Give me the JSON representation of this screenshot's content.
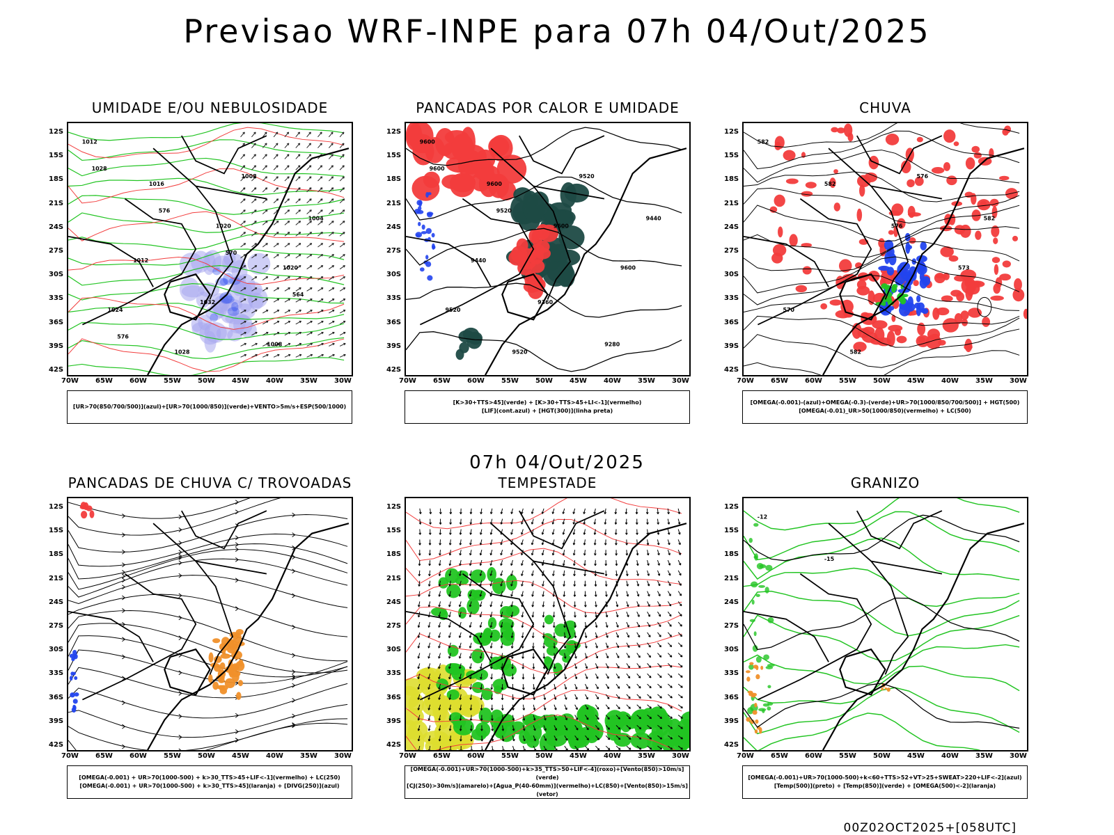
{
  "title": "Previsao WRF-INPE  para 07h 04/Out/2025",
  "mid_date": "07h 04/Out/2025",
  "footer": "00Z02OCT2025+[058UTC]",
  "lat_ticks": [
    "12S",
    "15S",
    "18S",
    "21S",
    "24S",
    "27S",
    "30S",
    "33S",
    "36S",
    "39S",
    "42S"
  ],
  "lon_ticks": [
    "70W",
    "65W",
    "60W",
    "55W",
    "50W",
    "45W",
    "40W",
    "35W",
    "30W"
  ],
  "colors": {
    "red": "#f23c3c",
    "green": "#22c422",
    "blue": "#2244ee",
    "lavender": "#a8a8ee",
    "darkgreen": "#1e4a44",
    "orange": "#f0902a",
    "yellow": "#dede30"
  },
  "panels": [
    {
      "title": "UMIDADE E/OU NEBULOSIDADE",
      "legend": [
        "[UR>70(850/700/500)](azul)+[UR>70(1000/850)](verde)+VENTO>5m/s+ESP(500/1000)"
      ]
    },
    {
      "title": "PANCADAS POR CALOR E UMIDADE",
      "legend": [
        "[K>30+TTS>45](verde) + [K>30+TTS>45+LI<-1](vermelho)",
        "[LIF](cont.azul) + [HGT(300)](linha preta)"
      ]
    },
    {
      "title": "CHUVA",
      "legend": [
        "[OMEGA(-0.001)-(azul)+OMEGA(-0.3)-(verde)+UR>70(1000/850/700/500)] + HGT(500)",
        "[OMEGA(-0.01)_UR>50(1000/850)(vermelho) + LC(500)"
      ]
    },
    {
      "title": "PANCADAS DE CHUVA C/ TROVOADAS",
      "legend": [
        "[OMEGA(-0.001) + UR>70(1000-500) + k>30_TTS>45+LIF<-1](vermelho) + LC(250)",
        "[OMEGA(-0.001) + UR>70(1000-500) + k>30_TTS>45](laranja) + [DIVG(250)](azul)"
      ]
    },
    {
      "title": "TEMPESTADE",
      "legend": [
        "[OMEGA(-0.001)+UR>70(1000-500)+k>35_TTS>50+LIF<-4](roxo)+[Vento(850)>10m/s](verde)",
        "[CJ(250)>30m/s](amarelo)+[Agua_P(40-60mm)](vermelho)+LC(850)+[Vento(850)>15m/s](vetor)"
      ]
    },
    {
      "title": "GRANIZO",
      "legend": [
        "[OMEGA(-0.001)+UR>70(1000-500)+k<60+TTS>52+VT>25+SWEAT>220+LIF<-2](azul)",
        "[Temp(500)](preto) + [Temp(850)](verde) + [OMEGA(500)<-2](laranja)"
      ]
    }
  ],
  "contour_labels": {
    "p0": [
      "1012",
      "1016",
      "1020",
      "1020",
      "1024",
      "1028",
      "1008",
      "1004",
      "1012",
      "1032",
      "1008",
      "1028",
      "576",
      "570",
      "564",
      "576"
    ],
    "p1": [
      "9600",
      "9600",
      "9600",
      "9600",
      "9520",
      "9520",
      "9520",
      "9440",
      "9440",
      "9360",
      "9280",
      "9600",
      "9520"
    ],
    "p2": [
      "582",
      "582",
      "576",
      "573",
      "570",
      "582",
      "576",
      "582"
    ],
    "p5": [
      "-12",
      "-15"
    ]
  }
}
